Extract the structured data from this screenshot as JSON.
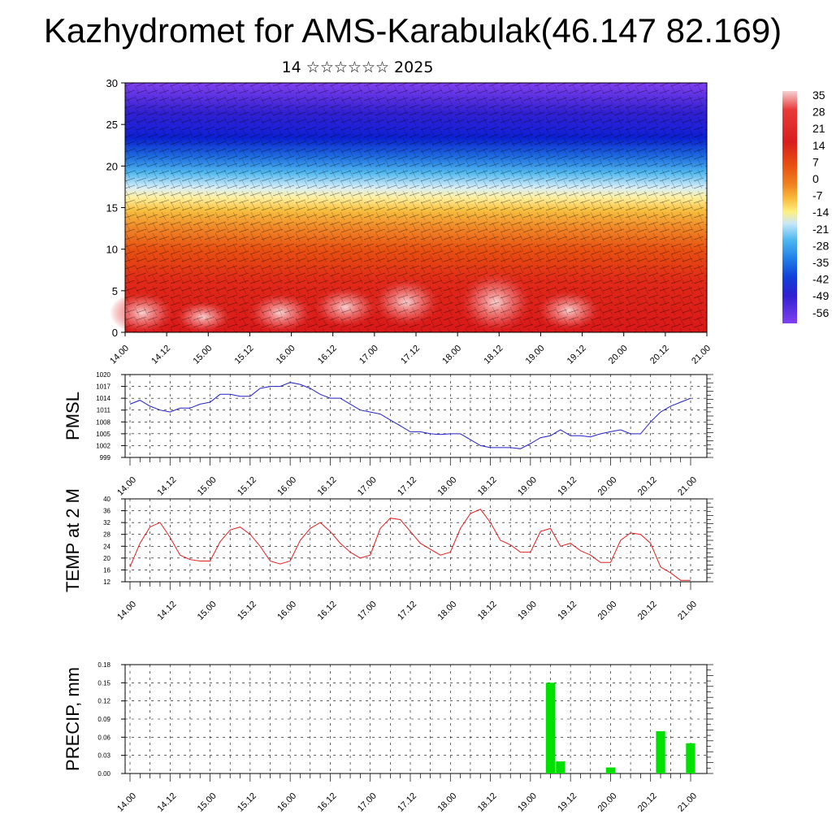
{
  "title": "Kazhydromet for AMS-Karabulak(46.147 82.169)",
  "subtitle": "14 ☆☆☆☆☆☆ 2025",
  "time_labels": [
    "14.00",
    "14.12",
    "15.00",
    "15.12",
    "16.00",
    "16.12",
    "17.00",
    "17.12",
    "18.00",
    "18.12",
    "19.00",
    "19.12",
    "20.00",
    "20.12",
    "21.00"
  ],
  "chart_data": [
    {
      "type": "heatmap",
      "name": "temperature-wind-cross-section",
      "ylim": [
        0,
        30
      ],
      "yticks": [
        0,
        5,
        10,
        15,
        20,
        25,
        30
      ],
      "colorbar": {
        "labels": [
          "35",
          "28",
          "21",
          "14",
          "7",
          "0",
          "-7",
          "-14",
          "-21",
          "-28",
          "-35",
          "-42",
          "-49",
          "-56"
        ],
        "colors": [
          "#f5d2d2",
          "#e83a3a",
          "#d81e1e",
          "#e85010",
          "#f08020",
          "#f8b838",
          "#fff080",
          "#c8e8f8",
          "#50b8f0",
          "#2080e8",
          "#1040d8",
          "#3020d0",
          "#6030e0",
          "#8040f0"
        ]
      }
    },
    {
      "type": "line",
      "ylabel": "PMSL",
      "ylim": [
        999,
        1020
      ],
      "yticks": [
        999,
        1002,
        1005,
        1008,
        1011,
        1014,
        1017,
        1020
      ],
      "x": [
        0,
        3,
        6,
        9,
        12,
        15,
        18,
        21,
        24,
        27,
        30,
        33,
        36,
        39,
        42,
        45,
        48,
        51,
        54,
        57,
        60,
        63,
        66,
        69,
        72,
        75,
        78,
        81,
        84,
        87,
        90,
        93,
        96,
        99,
        102,
        105,
        108,
        111,
        114,
        117,
        120,
        123,
        126,
        129,
        132,
        135,
        138,
        141,
        144,
        147,
        150,
        153,
        156,
        159,
        162,
        165,
        168
      ],
      "values": [
        1012.5,
        1013.5,
        1012,
        1011,
        1010.5,
        1011.5,
        1011.5,
        1012.5,
        1013,
        1015,
        1015,
        1014.5,
        1014.5,
        1016.5,
        1017,
        1017,
        1018,
        1017.5,
        1016.5,
        1015,
        1014,
        1014,
        1012.5,
        1011,
        1010.5,
        1010,
        1008.5,
        1007,
        1005.5,
        1005.5,
        1005,
        1004.8,
        1005,
        1005,
        1003.5,
        1002,
        1001.5,
        1001.5,
        1001.5,
        1001.2,
        1002.5,
        1004,
        1004.5,
        1006,
        1004.5,
        1004.5,
        1004.2,
        1005,
        1005.5,
        1006,
        1005,
        1005,
        1008,
        1010.5,
        1012,
        1013,
        1014
      ],
      "color": "#2020c8"
    },
    {
      "type": "line",
      "ylabel": "TEMP at 2 M",
      "ylim": [
        12,
        40
      ],
      "yticks": [
        12,
        16,
        20,
        24,
        28,
        32,
        36,
        40
      ],
      "x": [
        0,
        3,
        6,
        9,
        12,
        15,
        18,
        21,
        24,
        27,
        30,
        33,
        36,
        39,
        42,
        45,
        48,
        51,
        54,
        57,
        60,
        63,
        66,
        69,
        72,
        75,
        78,
        81,
        84,
        87,
        90,
        93,
        96,
        99,
        102,
        105,
        108,
        111,
        114,
        117,
        120,
        123,
        126,
        129,
        132,
        135,
        138,
        141,
        144,
        147,
        150,
        153,
        156,
        159,
        162,
        165,
        168
      ],
      "values": [
        17,
        25,
        30.5,
        32,
        27,
        21,
        19.5,
        19,
        19,
        25.5,
        29.5,
        30.5,
        28,
        24,
        19,
        18,
        19,
        26,
        30,
        32,
        29,
        25,
        22,
        20,
        21,
        30,
        33.5,
        33,
        29,
        25,
        23,
        21,
        22,
        30,
        35,
        36.5,
        32,
        26,
        24.5,
        22,
        22,
        29,
        30,
        24,
        25,
        22.5,
        21,
        18.5,
        18.5,
        26,
        28.5,
        28,
        25,
        17,
        15,
        12.5,
        12.5
      ],
      "color": "#e02020"
    },
    {
      "type": "bar",
      "ylabel": "PRECIP, mm",
      "ylim": [
        0,
        0.18
      ],
      "yticks": [
        "0.00",
        "0.03",
        "0.06",
        "0.09",
        "0.12",
        "0.15",
        "0.18"
      ],
      "x": [
        0,
        3,
        6,
        9,
        12,
        15,
        18,
        21,
        24,
        27,
        30,
        33,
        36,
        39,
        42,
        45,
        48,
        51,
        54,
        57,
        60,
        63,
        66,
        69,
        72,
        75,
        78,
        81,
        84,
        87,
        90,
        93,
        96,
        99,
        102,
        105,
        108,
        111,
        114,
        117,
        120,
        123,
        126,
        129,
        132,
        135,
        138,
        141,
        144,
        147,
        150,
        153,
        156,
        159,
        162,
        165,
        168
      ],
      "values": [
        0,
        0,
        0,
        0,
        0,
        0,
        0,
        0,
        0,
        0,
        0,
        0,
        0,
        0,
        0,
        0,
        0,
        0,
        0,
        0,
        0,
        0,
        0,
        0,
        0,
        0,
        0,
        0,
        0,
        0,
        0,
        0,
        0,
        0,
        0,
        0,
        0,
        0,
        0,
        0,
        0,
        0,
        0.15,
        0.02,
        0,
        0,
        0,
        0,
        0.01,
        0,
        0,
        0,
        0,
        0.07,
        0,
        0,
        0.05
      ],
      "color": "#00e000"
    }
  ]
}
